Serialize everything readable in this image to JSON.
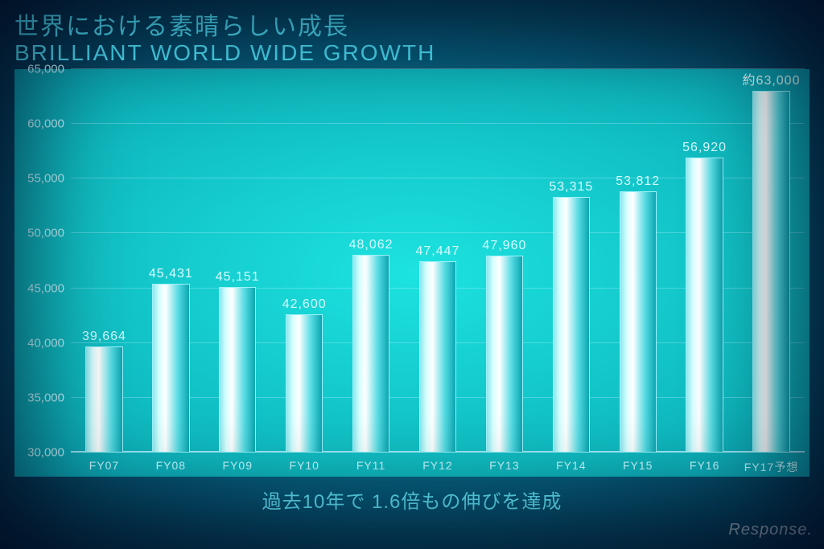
{
  "title_jp": "世界における素晴らしい成長",
  "title_en": "BRILLIANT WORLD WIDE GROWTH",
  "caption": "過去10年で 1.6倍もの伸びを達成",
  "watermark": "Response.",
  "chart": {
    "type": "bar",
    "ylim": [
      30000,
      65000
    ],
    "ytick_step": 5000,
    "yticks": [
      30000,
      35000,
      40000,
      45000,
      50000,
      55000,
      60000,
      65000
    ],
    "ytick_labels": [
      "30,000",
      "35,000",
      "40,000",
      "45,000",
      "50,000",
      "55,000",
      "60,000",
      "65,000"
    ],
    "grid_color": "#aee8f2",
    "background_color": "#12cfd0",
    "bar_gradient": [
      "#89e8ef",
      "#d8ffff",
      "#ffffff",
      "#55dbe3",
      "#0aa5b0"
    ],
    "text_color": "#d6fbff",
    "axis_text_color": "#c6f9ff",
    "bar_width_ratio": 0.56,
    "label_fontsize": 16,
    "axis_fontsize": 14,
    "categories": [
      "FY07",
      "FY08",
      "FY09",
      "FY10",
      "FY11",
      "FY12",
      "FY13",
      "FY14",
      "FY15",
      "FY16",
      "FY17予想"
    ],
    "values": [
      39664,
      45431,
      45151,
      42600,
      48062,
      47447,
      47960,
      53315,
      53812,
      56920,
      63000
    ],
    "value_labels": [
      "39,664",
      "45,431",
      "45,151",
      "42,600",
      "48,062",
      "47,447",
      "47,960",
      "53,315",
      "53,812",
      "56,920",
      "約63,000"
    ]
  }
}
